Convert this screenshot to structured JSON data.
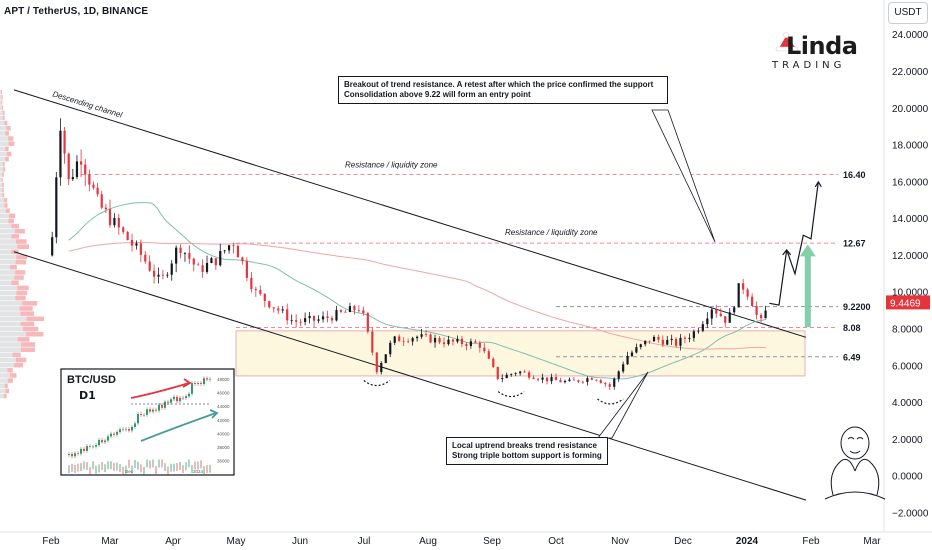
{
  "header": {
    "symbol_text": "APT / TetherUS, 1D, BINANCE",
    "currency_button": "USDT"
  },
  "colors": {
    "up": "#131722",
    "down": "#e5343c",
    "channel": "#131722",
    "resistance": "#f28b96",
    "dashed_grey": "#8f96a3",
    "box_fill": "#fdf7df",
    "box_stroke": "#e8b0b0",
    "ma_short": "#7fbfb0",
    "ma_long": "#f0a6a6",
    "price_label_bg": "#e5343c",
    "arrow_green": "#6cc79a",
    "arrow_red": "#e5343c"
  },
  "logo": {
    "title": "Linda",
    "subtitle": "TRADING"
  },
  "annotations": {
    "descending_channel": "Descending channel",
    "resistance_zone_top": "Resistance / liquidity zone",
    "resistance_zone_mid": "Resistance / liquidity zone",
    "breakout_note_line1": "Breakout of trend resistance. A retest after which the price confirmed the support",
    "breakout_note_line2": "Consolidation above 9.22 will form an entry point",
    "uptrend_note_line1": "Local uptrend breaks trend resistance",
    "uptrend_note_line2": "Strong triple bottom support is forming"
  },
  "inset": {
    "title": "BTC/USD",
    "timeframe": "D1",
    "y_ticks": [
      "48000",
      "46000",
      "44000",
      "42000",
      "40000",
      "38000",
      "36000"
    ],
    "x_ticks": [
      "Dec",
      "2024"
    ]
  },
  "chart_data": {
    "type": "candlestick",
    "title": "APT / TetherUS, 1D, BINANCE",
    "x_ticks": [
      "Feb",
      "Mar",
      "Apr",
      "May",
      "Jun",
      "Jul",
      "Aug",
      "Sep",
      "Oct",
      "Nov",
      "Dec",
      "2024",
      "Feb",
      "Mar"
    ],
    "y_ticks": [
      "24.0000",
      "22.0000",
      "20.0000",
      "18.0000",
      "16.0000",
      "14.0000",
      "12.0000",
      "10.0000",
      "8.0000",
      "6.0000",
      "4.0000",
      "2.0000",
      "0.0000",
      "−2.0000"
    ],
    "ylim": [
      -2.6,
      24.8
    ],
    "levels": [
      {
        "label": "16.40",
        "value": 16.4,
        "style": "resistance"
      },
      {
        "label": "12.67",
        "value": 12.67,
        "style": "resistance"
      },
      {
        "label": "9.2200",
        "value": 9.22,
        "style": "support"
      },
      {
        "label": "8.08",
        "value": 8.08,
        "style": "resistance"
      },
      {
        "label": "6.49",
        "value": 6.49,
        "style": "support"
      }
    ],
    "current_price": {
      "label": "9.4469",
      "value": 9.4469
    },
    "support_box": {
      "from": "May",
      "to": "Feb",
      "low": 5.45,
      "high": 7.9
    },
    "price_path": [
      {
        "month": 0.0,
        "price": 12.0
      },
      {
        "month": 0.15,
        "price": 19.5
      },
      {
        "month": 0.3,
        "price": 16.0
      },
      {
        "month": 0.5,
        "price": 17.5
      },
      {
        "month": 0.8,
        "price": 14.8
      },
      {
        "month": 1.2,
        "price": 13.2
      },
      {
        "month": 1.5,
        "price": 12.0
      },
      {
        "month": 1.8,
        "price": 10.5
      },
      {
        "month": 2.1,
        "price": 12.6
      },
      {
        "month": 2.4,
        "price": 11.2
      },
      {
        "month": 2.7,
        "price": 11.8
      },
      {
        "month": 2.95,
        "price": 12.8
      },
      {
        "month": 3.3,
        "price": 10.0
      },
      {
        "month": 3.6,
        "price": 9.2
      },
      {
        "month": 3.9,
        "price": 8.4
      },
      {
        "month": 4.3,
        "price": 8.5
      },
      {
        "month": 4.7,
        "price": 8.9
      },
      {
        "month": 4.95,
        "price": 9.2
      },
      {
        "month": 5.2,
        "price": 5.8
      },
      {
        "month": 5.45,
        "price": 7.4
      },
      {
        "month": 5.8,
        "price": 7.6
      },
      {
        "month": 6.3,
        "price": 7.3
      },
      {
        "month": 6.8,
        "price": 7.2
      },
      {
        "month": 7.1,
        "price": 5.3
      },
      {
        "month": 7.4,
        "price": 5.7
      },
      {
        "month": 7.8,
        "price": 5.3
      },
      {
        "month": 8.2,
        "price": 5.1
      },
      {
        "month": 8.6,
        "price": 5.4
      },
      {
        "month": 8.85,
        "price": 4.85
      },
      {
        "month": 9.1,
        "price": 6.5
      },
      {
        "month": 9.5,
        "price": 7.5
      },
      {
        "month": 9.9,
        "price": 7.2
      },
      {
        "month": 10.2,
        "price": 7.9
      },
      {
        "month": 10.45,
        "price": 9.2
      },
      {
        "month": 10.7,
        "price": 8.4
      },
      {
        "month": 10.9,
        "price": 10.5
      },
      {
        "month": 11.05,
        "price": 9.8
      },
      {
        "month": 11.2,
        "price": 8.2
      },
      {
        "month": 11.35,
        "price": 9.4
      }
    ],
    "forecast": [
      {
        "month": 11.35,
        "price": 9.4
      },
      {
        "month": 11.5,
        "price": 9.3
      },
      {
        "month": 11.62,
        "price": 12.3
      },
      {
        "month": 11.75,
        "price": 11.0
      },
      {
        "month": 11.88,
        "price": 13.1
      },
      {
        "month": 12.0,
        "price": 12.9
      },
      {
        "month": 12.12,
        "price": 16.0
      }
    ]
  }
}
